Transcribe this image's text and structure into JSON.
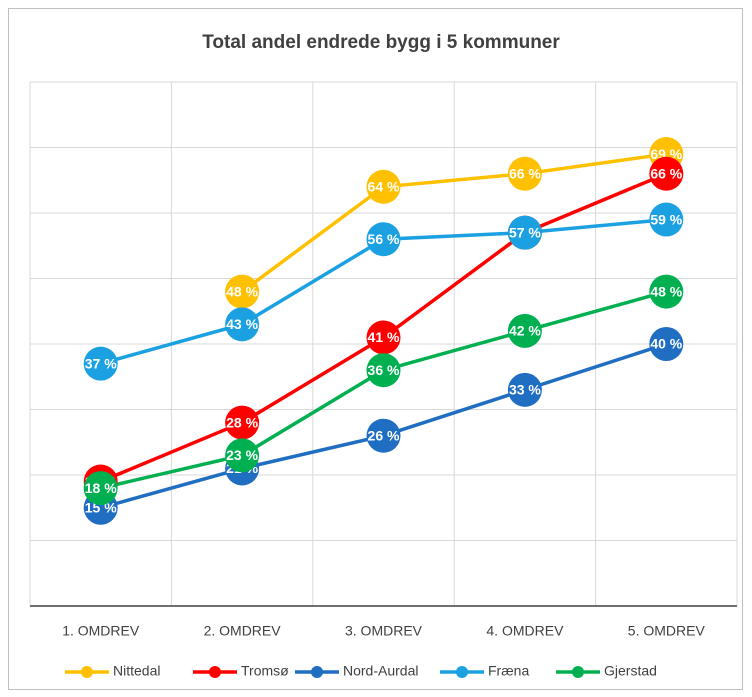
{
  "chart_data": {
    "type": "line",
    "title": "Total andel endrede bygg i 5 kommuner",
    "categories": [
      "1. OMDREV",
      "2. OMDREV",
      "3. OMDREV",
      "4. OMDREV",
      "5. OMDREV"
    ],
    "series": [
      {
        "name": "Nittedal",
        "color": "#FFC000",
        "values": [
          null,
          48,
          64,
          66,
          69
        ],
        "value_labels": [
          null,
          "48 %",
          "64 %",
          "66 %",
          "69 %"
        ]
      },
      {
        "name": "Tromsø",
        "color": "#FF0000",
        "values": [
          19,
          28,
          41,
          57,
          66
        ],
        "value_labels": [
          "19 %",
          "28 %",
          "41 %",
          "57 %",
          "66 %"
        ]
      },
      {
        "name": "Nord-Aurdal",
        "color": "#1F6EC1",
        "values": [
          15,
          21,
          26,
          33,
          40
        ],
        "value_labels": [
          "15 %",
          "21 %",
          "26 %",
          "33 %",
          "40 %"
        ]
      },
      {
        "name": "Fræna",
        "color": "#1BA1E2",
        "values": [
          37,
          43,
          56,
          57,
          59
        ],
        "value_labels": [
          "37 %",
          "43 %",
          "56 %",
          "57 %",
          "59 %"
        ]
      },
      {
        "name": "Gjerstad",
        "color": "#00B050",
        "values": [
          18,
          23,
          36,
          42,
          48
        ],
        "value_labels": [
          "18 %",
          "23 %",
          "36 %",
          "42 %",
          "48 %"
        ]
      }
    ],
    "ylim": [
      0,
      80
    ],
    "yticks": [
      0,
      10,
      20,
      30,
      40,
      50,
      60,
      70,
      80
    ],
    "grid": true,
    "legend": "bottom"
  }
}
